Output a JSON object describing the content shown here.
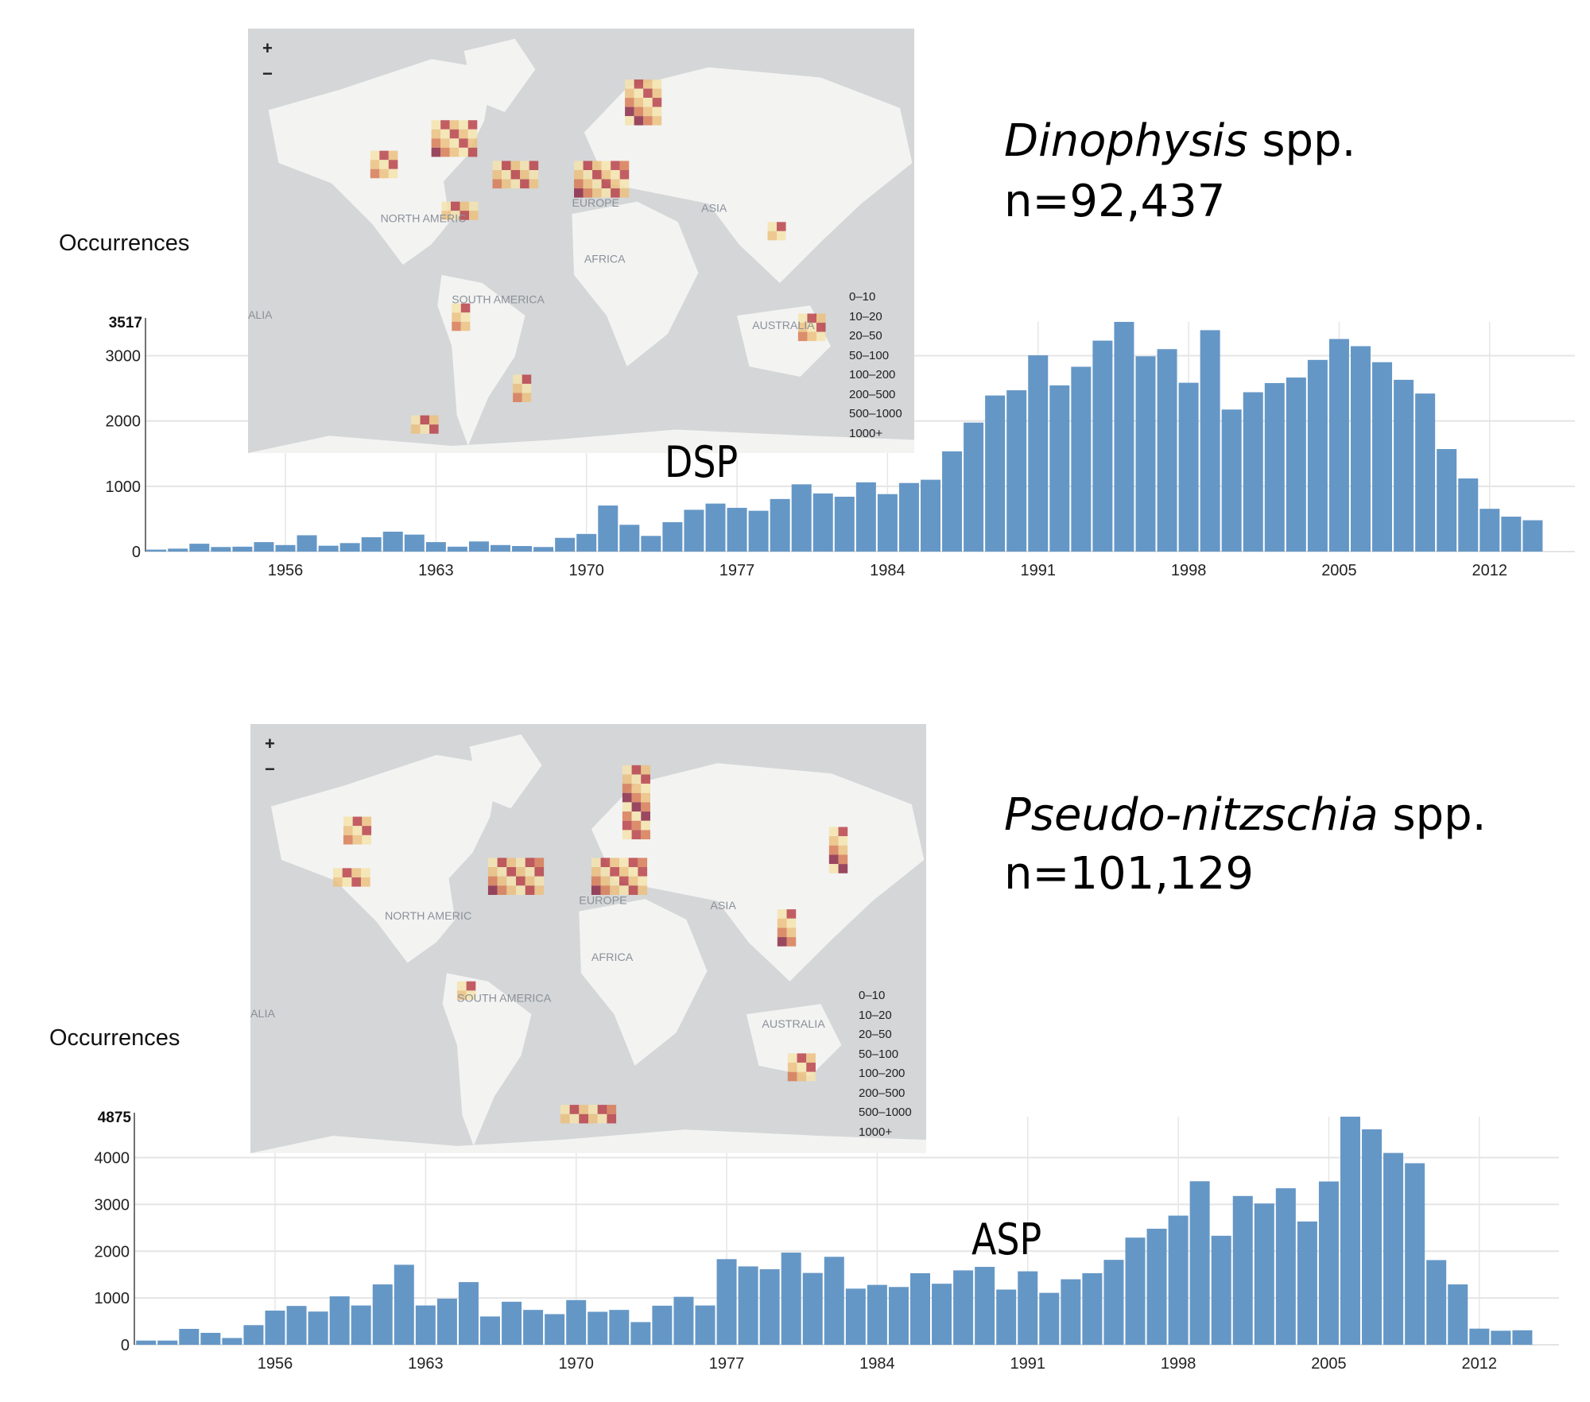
{
  "chart_data": [
    {
      "type": "bar",
      "title": "DSP",
      "species": "Dinophysis",
      "species_suffix": " spp.",
      "n_label": "n=92,437",
      "ylabel": "Occurrences",
      "xlabel": "",
      "ylim": [
        0,
        3517
      ],
      "y_ticks": [
        "0",
        "1000",
        "2000",
        "3000"
      ],
      "y_max_label": "3517",
      "x_tick_labels": [
        "1956",
        "1963",
        "1970",
        "1977",
        "1984",
        "1991",
        "1998",
        "2005",
        "2012"
      ],
      "x_ticks": [
        1956,
        1963,
        1970,
        1977,
        1984,
        1991,
        1998,
        2005,
        2012
      ],
      "grid": true,
      "color": "#6597c6",
      "start_year": 1950,
      "values": [
        30,
        45,
        120,
        70,
        75,
        145,
        100,
        250,
        90,
        130,
        220,
        305,
        260,
        145,
        75,
        155,
        100,
        85,
        70,
        210,
        270,
        705,
        410,
        240,
        450,
        640,
        735,
        670,
        625,
        805,
        1030,
        890,
        840,
        1060,
        880,
        1050,
        1100,
        1535,
        1975,
        2390,
        2470,
        3005,
        2545,
        2830,
        3230,
        3517,
        2990,
        3100,
        2585,
        3390,
        2175,
        2440,
        2580,
        2665,
        2935,
        3255,
        3145,
        2900,
        2630,
        2420,
        1570,
        1120,
        655,
        535,
        480
      ]
    },
    {
      "type": "bar",
      "title": "ASP",
      "species": "Pseudo-nitzschia",
      "species_suffix": " spp.",
      "n_label": "n=101,129",
      "ylabel": "Occurrences",
      "xlabel": "",
      "ylim": [
        0,
        4875
      ],
      "y_ticks": [
        "0",
        "1000",
        "2000",
        "3000",
        "4000"
      ],
      "y_max_label": "4875",
      "x_tick_labels": [
        "1956",
        "1963",
        "1970",
        "1977",
        "1984",
        "1991",
        "1998",
        "2005",
        "2012"
      ],
      "x_ticks": [
        1956,
        1963,
        1970,
        1977,
        1984,
        1991,
        1998,
        2005,
        2012
      ],
      "grid": true,
      "color": "#6597c6",
      "start_year": 1950,
      "values": [
        90,
        90,
        340,
        255,
        145,
        420,
        730,
        830,
        710,
        1035,
        840,
        1290,
        1710,
        840,
        985,
        1340,
        605,
        920,
        745,
        655,
        955,
        705,
        745,
        485,
        835,
        1025,
        840,
        1830,
        1675,
        1615,
        1970,
        1535,
        1880,
        1200,
        1280,
        1235,
        1530,
        1305,
        1590,
        1665,
        1180,
        1570,
        1110,
        1400,
        1530,
        1815,
        2290,
        2480,
        2760,
        3495,
        2330,
        3180,
        3020,
        3345,
        2635,
        3490,
        4875,
        4605,
        4100,
        3880,
        1810,
        1290,
        345,
        300,
        310
      ]
    }
  ],
  "maps": [
    {
      "zoom_in": "+",
      "zoom_out": "−",
      "labels": [
        "NORTH AMERIC",
        "SOUTH AMERICA",
        "EUROPE",
        "ASIA",
        "AFRICA",
        "AUSTRALIA",
        "ALIA"
      ],
      "legend": [
        "0–10",
        "10–20",
        "20–50",
        "50–100",
        "100–200",
        "200–500",
        "500–1000",
        "1000+"
      ]
    },
    {
      "zoom_in": "+",
      "zoom_out": "−",
      "labels": [
        "NORTH AMERIC",
        "SOUTH AMERICA",
        "EUROPE",
        "ASIA",
        "AFRICA",
        "AUSTRALIA",
        "ALIA"
      ],
      "legend": [
        "0–10",
        "10–20",
        "20–50",
        "50–100",
        "100–200",
        "200–500",
        "500–1000",
        "1000+"
      ]
    }
  ],
  "colors": {
    "bar": "#6597c6",
    "ocean": "#d4d6d8",
    "land": "#f3f3f2",
    "heat": [
      "#f3e3ad",
      "#ebbf7f",
      "#d77a55",
      "#b8434a",
      "#8a2947"
    ]
  }
}
